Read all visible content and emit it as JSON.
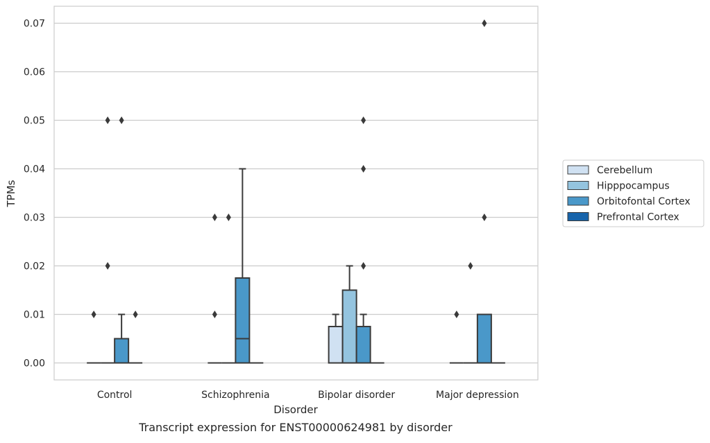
{
  "chart_data": {
    "type": "box",
    "title": "",
    "caption": "Transcript expression for ENST00000624981 by disorder",
    "xlabel": "Disorder",
    "ylabel": "TPMs",
    "ylim": [
      -0.0035,
      0.0735
    ],
    "yticks": [
      0.0,
      0.01,
      0.02,
      0.03,
      0.04,
      0.05,
      0.06,
      0.07
    ],
    "ytick_labels": [
      "0.00",
      "0.01",
      "0.02",
      "0.03",
      "0.04",
      "0.05",
      "0.06",
      "0.07"
    ],
    "grid": "horizontal",
    "legend_position": "right",
    "categories": [
      "Control",
      "Schizophrenia",
      "Bipolar disorder",
      "Major depression"
    ],
    "series": [
      {
        "name": "Cerebellum",
        "color": "#d0e1f2",
        "boxes": [
          {
            "q1": 0,
            "median": 0,
            "q3": 0,
            "whisker_low": 0,
            "whisker_high": 0,
            "outliers": [
              0.01
            ]
          },
          {
            "q1": 0,
            "median": 0,
            "q3": 0,
            "whisker_low": 0,
            "whisker_high": 0,
            "outliers": [
              0.01,
              0.03
            ]
          },
          {
            "q1": 0,
            "median": 0,
            "q3": 0.0075,
            "whisker_low": 0,
            "whisker_high": 0.01,
            "outliers": []
          },
          {
            "q1": 0,
            "median": 0,
            "q3": 0,
            "whisker_low": 0,
            "whisker_high": 0,
            "outliers": [
              0.01
            ]
          }
        ]
      },
      {
        "name": "Hipppocampus",
        "color": "#94c4df",
        "boxes": [
          {
            "q1": 0,
            "median": 0,
            "q3": 0,
            "whisker_low": 0,
            "whisker_high": 0,
            "outliers": [
              0.02,
              0.05
            ]
          },
          {
            "q1": 0,
            "median": 0,
            "q3": 0,
            "whisker_low": 0,
            "whisker_high": 0,
            "outliers": [
              0.03
            ]
          },
          {
            "q1": 0,
            "median": 0,
            "q3": 0.015,
            "whisker_low": 0,
            "whisker_high": 0.02,
            "outliers": []
          },
          {
            "q1": 0,
            "median": 0,
            "q3": 0,
            "whisker_low": 0,
            "whisker_high": 0,
            "outliers": [
              0.02
            ]
          }
        ]
      },
      {
        "name": "Orbitofontal Cortex",
        "color": "#4a98c9",
        "boxes": [
          {
            "q1": 0,
            "median": 0,
            "q3": 0.005,
            "whisker_low": 0,
            "whisker_high": 0.01,
            "outliers": [
              0.05
            ]
          },
          {
            "q1": 0,
            "median": 0.005,
            "q3": 0.0175,
            "whisker_low": 0,
            "whisker_high": 0.04,
            "outliers": []
          },
          {
            "q1": 0,
            "median": 0,
            "q3": 0.0075,
            "whisker_low": 0,
            "whisker_high": 0.01,
            "outliers": [
              0.02,
              0.04,
              0.05
            ]
          },
          {
            "q1": 0,
            "median": 0,
            "q3": 0.01,
            "whisker_low": 0,
            "whisker_high": 0.01,
            "outliers": [
              0.03,
              0.07
            ]
          }
        ]
      },
      {
        "name": "Prefrontal Cortex",
        "color": "#1764ab",
        "boxes": [
          {
            "q1": 0,
            "median": 0,
            "q3": 0,
            "whisker_low": 0,
            "whisker_high": 0,
            "outliers": [
              0.01
            ]
          },
          {
            "q1": 0,
            "median": 0,
            "q3": 0,
            "whisker_low": 0,
            "whisker_high": 0,
            "outliers": []
          },
          {
            "q1": 0,
            "median": 0,
            "q3": 0,
            "whisker_low": 0,
            "whisker_high": 0,
            "outliers": []
          },
          {
            "q1": 0,
            "median": 0,
            "q3": 0,
            "whisker_low": 0,
            "whisker_high": 0,
            "outliers": []
          }
        ]
      }
    ]
  }
}
